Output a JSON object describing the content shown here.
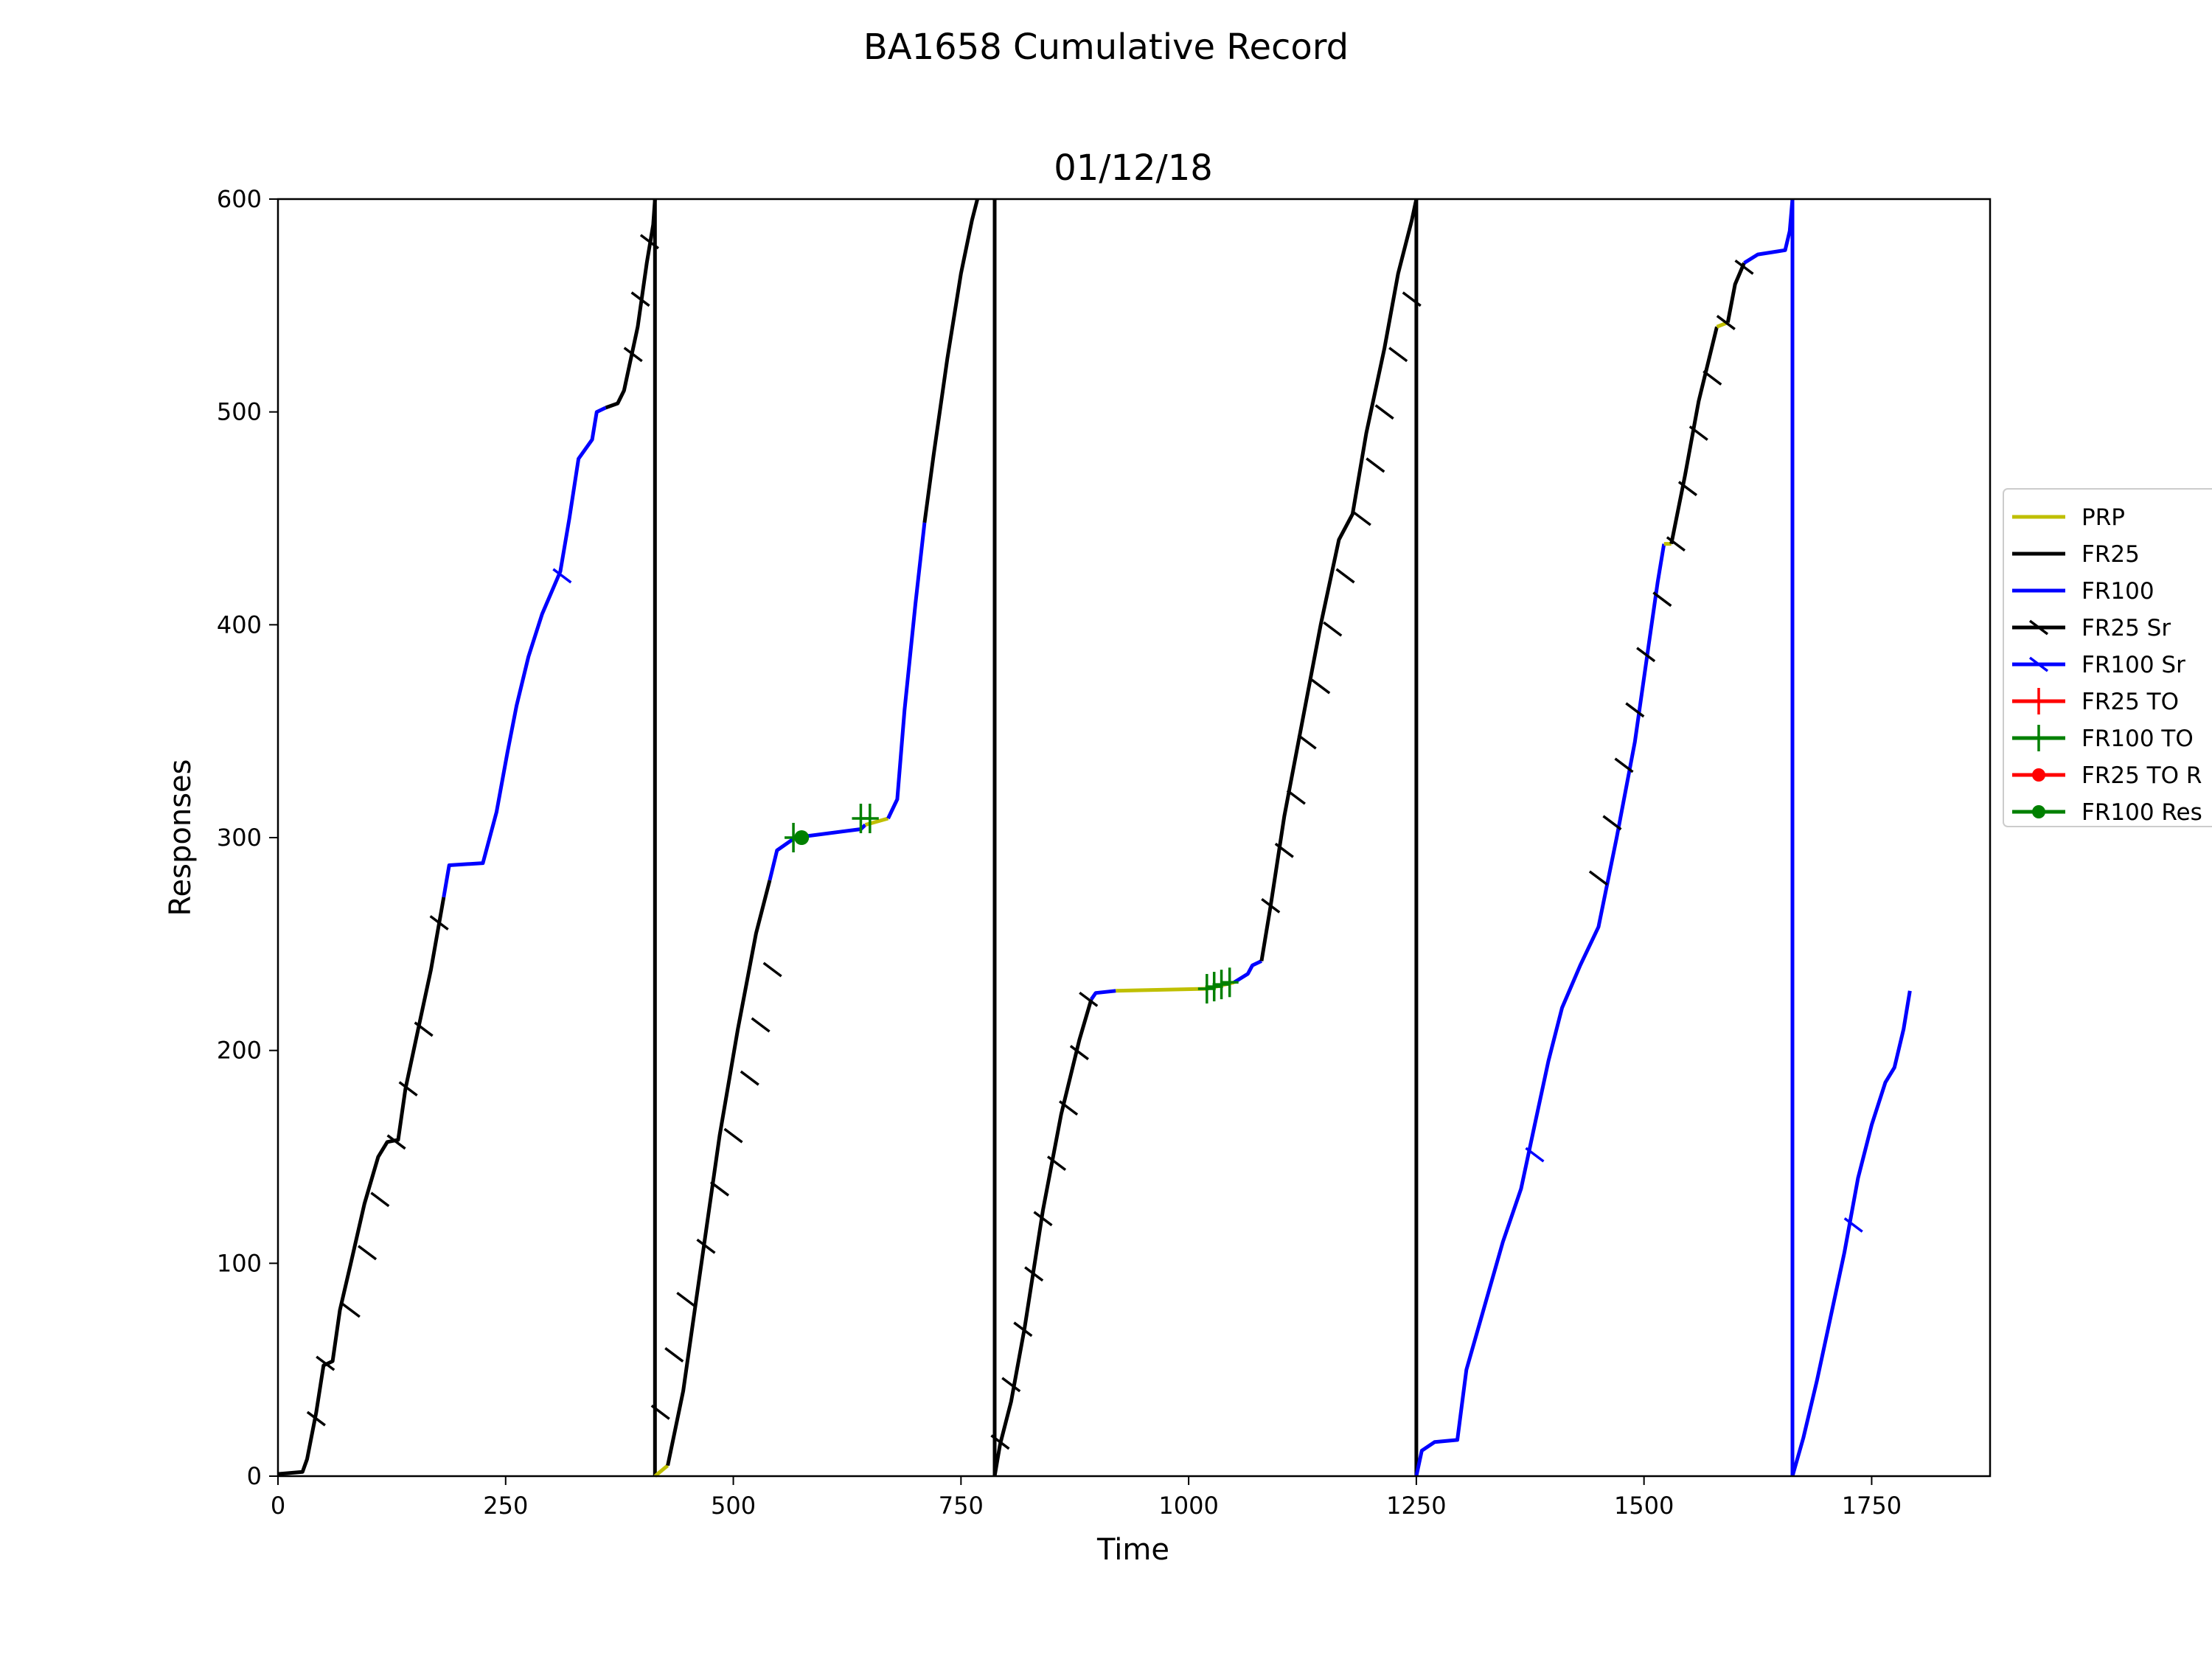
{
  "figure": {
    "suptitle": "BA1658 Cumulative Record"
  },
  "chart_data": {
    "type": "line",
    "title": "01/12/18",
    "xlabel": "Time",
    "ylabel": "Responses",
    "xlim": [
      0,
      1880
    ],
    "ylim": [
      0,
      600
    ],
    "xticks": [
      0,
      250,
      500,
      750,
      1000,
      1250,
      1500,
      1750
    ],
    "yticks": [
      0,
      100,
      200,
      300,
      400,
      500,
      600
    ],
    "grid": false,
    "legend_position": "outside-right",
    "legend": [
      {
        "label": "PRP",
        "color": "#bfbf00",
        "marker": "none"
      },
      {
        "label": "FR25",
        "color": "#000000",
        "marker": "none"
      },
      {
        "label": "FR100",
        "color": "#0000ff",
        "marker": "none"
      },
      {
        "label": "FR25 Sr",
        "color": "#000000",
        "marker": "slash"
      },
      {
        "label": "FR100 Sr",
        "color": "#0000ff",
        "marker": "slash"
      },
      {
        "label": "FR25 TO",
        "color": "#ff0000",
        "marker": "plus"
      },
      {
        "label": "FR100 TO",
        "color": "#008000",
        "marker": "plus"
      },
      {
        "label": "FR25 TO R",
        "color": "#ff0000",
        "marker": "dot"
      },
      {
        "label": "FR100 Res",
        "color": "#008000",
        "marker": "dot"
      }
    ],
    "series": [
      {
        "color": "#000000",
        "points": [
          [
            0,
            1
          ],
          [
            27,
            2
          ],
          [
            32,
            8
          ],
          [
            42,
            30
          ],
          [
            50,
            52
          ],
          [
            60,
            54
          ],
          [
            68,
            78
          ],
          [
            80,
            100
          ],
          [
            95,
            128
          ],
          [
            110,
            150
          ],
          [
            120,
            157
          ],
          [
            132,
            158
          ],
          [
            140,
            182
          ],
          [
            155,
            212
          ],
          [
            168,
            238
          ],
          [
            182,
            272
          ]
        ]
      },
      {
        "color": "#0000ff",
        "points": [
          [
            182,
            272
          ],
          [
            188,
            287
          ],
          [
            225,
            288
          ],
          [
            240,
            312
          ],
          [
            252,
            340
          ],
          [
            262,
            362
          ],
          [
            275,
            385
          ],
          [
            290,
            405
          ],
          [
            310,
            425
          ],
          [
            320,
            450
          ],
          [
            330,
            478
          ],
          [
            345,
            487
          ],
          [
            350,
            500
          ],
          [
            360,
            502
          ]
        ]
      },
      {
        "color": "#000000",
        "points": [
          [
            360,
            502
          ],
          [
            373,
            504
          ],
          [
            380,
            510
          ],
          [
            395,
            540
          ],
          [
            405,
            570
          ],
          [
            412,
            588
          ],
          [
            414,
            600
          ]
        ]
      },
      {
        "color": "#000000",
        "points": [
          [
            414,
            600
          ],
          [
            414,
            0
          ]
        ]
      },
      {
        "color": "#bfbf00",
        "points": [
          [
            414,
            0
          ],
          [
            428,
            5
          ]
        ]
      },
      {
        "color": "#000000",
        "points": [
          [
            428,
            5
          ],
          [
            445,
            40
          ],
          [
            465,
            100
          ],
          [
            485,
            160
          ],
          [
            505,
            210
          ],
          [
            525,
            255
          ],
          [
            540,
            280
          ]
        ]
      },
      {
        "color": "#0000ff",
        "points": [
          [
            540,
            280
          ],
          [
            548,
            294
          ],
          [
            568,
            300
          ],
          [
            640,
            304
          ],
          [
            645,
            306
          ]
        ]
      },
      {
        "color": "#bfbf00",
        "points": [
          [
            645,
            306
          ],
          [
            670,
            309
          ]
        ]
      },
      {
        "color": "#0000ff",
        "points": [
          [
            670,
            309
          ],
          [
            680,
            318
          ],
          [
            688,
            360
          ],
          [
            700,
            410
          ],
          [
            710,
            448
          ]
        ]
      },
      {
        "color": "#000000",
        "points": [
          [
            710,
            448
          ],
          [
            720,
            480
          ],
          [
            735,
            525
          ],
          [
            750,
            565
          ],
          [
            762,
            590
          ],
          [
            768,
            600
          ]
        ]
      },
      {
        "color": "#000000",
        "points": [
          [
            787,
            600
          ],
          [
            787,
            0
          ]
        ]
      },
      {
        "color": "#000000",
        "points": [
          [
            787,
            0
          ],
          [
            793,
            15
          ],
          [
            805,
            35
          ],
          [
            820,
            70
          ],
          [
            840,
            125
          ],
          [
            860,
            170
          ],
          [
            880,
            205
          ],
          [
            893,
            224
          ]
        ]
      },
      {
        "color": "#0000ff",
        "points": [
          [
            893,
            224
          ],
          [
            898,
            227
          ],
          [
            920,
            228
          ]
        ]
      },
      {
        "color": "#bfbf00",
        "points": [
          [
            920,
            228
          ],
          [
            1020,
            229
          ],
          [
            1050,
            232
          ]
        ]
      },
      {
        "color": "#0000ff",
        "points": [
          [
            1050,
            232
          ],
          [
            1065,
            236
          ],
          [
            1070,
            240
          ],
          [
            1080,
            242
          ]
        ]
      },
      {
        "color": "#000000",
        "points": [
          [
            1080,
            242
          ],
          [
            1090,
            268
          ],
          [
            1105,
            310
          ],
          [
            1125,
            355
          ],
          [
            1145,
            400
          ],
          [
            1165,
            440
          ],
          [
            1180,
            452
          ],
          [
            1195,
            490
          ],
          [
            1215,
            530
          ],
          [
            1230,
            565
          ],
          [
            1245,
            590
          ],
          [
            1250,
            600
          ]
        ]
      },
      {
        "color": "#000000",
        "points": [
          [
            1250,
            600
          ],
          [
            1250,
            0
          ]
        ]
      },
      {
        "color": "#0000ff",
        "points": [
          [
            1250,
            0
          ],
          [
            1256,
            12
          ],
          [
            1270,
            16
          ],
          [
            1295,
            17
          ],
          [
            1305,
            50
          ],
          [
            1325,
            80
          ],
          [
            1345,
            110
          ],
          [
            1365,
            135
          ],
          [
            1380,
            165
          ],
          [
            1395,
            195
          ],
          [
            1410,
            220
          ],
          [
            1430,
            240
          ],
          [
            1450,
            258
          ],
          [
            1470,
            300
          ],
          [
            1490,
            345
          ],
          [
            1505,
            390
          ],
          [
            1515,
            420
          ],
          [
            1522,
            438
          ]
        ]
      },
      {
        "color": "#bfbf00",
        "points": [
          [
            1522,
            438
          ],
          [
            1530,
            438
          ]
        ]
      },
      {
        "color": "#000000",
        "points": [
          [
            1530,
            438
          ],
          [
            1545,
            470
          ],
          [
            1560,
            505
          ],
          [
            1580,
            540
          ]
        ]
      },
      {
        "color": "#bfbf00",
        "points": [
          [
            1580,
            540
          ],
          [
            1592,
            542
          ]
        ]
      },
      {
        "color": "#000000",
        "points": [
          [
            1592,
            542
          ],
          [
            1600,
            560
          ],
          [
            1610,
            570
          ]
        ]
      },
      {
        "color": "#0000ff",
        "points": [
          [
            1610,
            570
          ],
          [
            1625,
            574
          ],
          [
            1655,
            576
          ],
          [
            1660,
            585
          ],
          [
            1663,
            600
          ]
        ]
      },
      {
        "color": "#0000ff",
        "points": [
          [
            1663,
            600
          ],
          [
            1663,
            0
          ]
        ]
      },
      {
        "color": "#0000ff",
        "points": [
          [
            1663,
            0
          ],
          [
            1675,
            18
          ],
          [
            1690,
            45
          ],
          [
            1705,
            75
          ],
          [
            1720,
            105
          ],
          [
            1735,
            140
          ],
          [
            1750,
            165
          ],
          [
            1765,
            185
          ],
          [
            1775,
            192
          ],
          [
            1785,
            210
          ],
          [
            1792,
            228
          ]
        ]
      }
    ],
    "reinforcers": [
      {
        "color": "#000000",
        "x": [
          42,
          52,
          80,
          98,
          112,
          130,
          143,
          160,
          177,
          390,
          398,
          408,
          420,
          435,
          448,
          470,
          485,
          500,
          518,
          530,
          543,
          793,
          805,
          818,
          830,
          840,
          855,
          868,
          880,
          890,
          1090,
          1105,
          1118,
          1130,
          1145,
          1158,
          1172,
          1190,
          1205,
          1215,
          1230,
          1245,
          1450,
          1465,
          1478,
          1490,
          1502,
          1520,
          1535,
          1548,
          1560,
          1575,
          1590,
          1610
        ],
        "y": [
          27,
          53,
          78,
          105,
          130,
          157,
          182,
          210,
          260,
          527,
          553,
          580,
          30,
          57,
          83,
          108,
          135,
          160,
          187,
          212,
          238,
          16,
          43,
          69,
          95,
          121,
          147,
          173,
          199,
          224,
          268,
          294,
          319,
          345,
          371,
          398,
          423,
          450,
          475,
          500,
          527,
          553,
          281,
          307,
          334,
          360,
          386,
          412,
          438,
          464,
          490,
          516,
          542,
          568
        ]
      },
      {
        "color": "#0000ff",
        "x": [
          312,
          1380,
          1730
        ],
        "y": [
          423,
          151,
          118
        ]
      }
    ],
    "timeouts": [
      {
        "color": "#008000",
        "x": [
          566,
          640,
          650,
          1020,
          1028,
          1036,
          1045
        ],
        "y": [
          300,
          309,
          309,
          229,
          230,
          231,
          232
        ]
      }
    ],
    "time_out_responses": [
      {
        "color": "#008000",
        "x": [
          575
        ],
        "y": [
          300
        ]
      }
    ]
  }
}
